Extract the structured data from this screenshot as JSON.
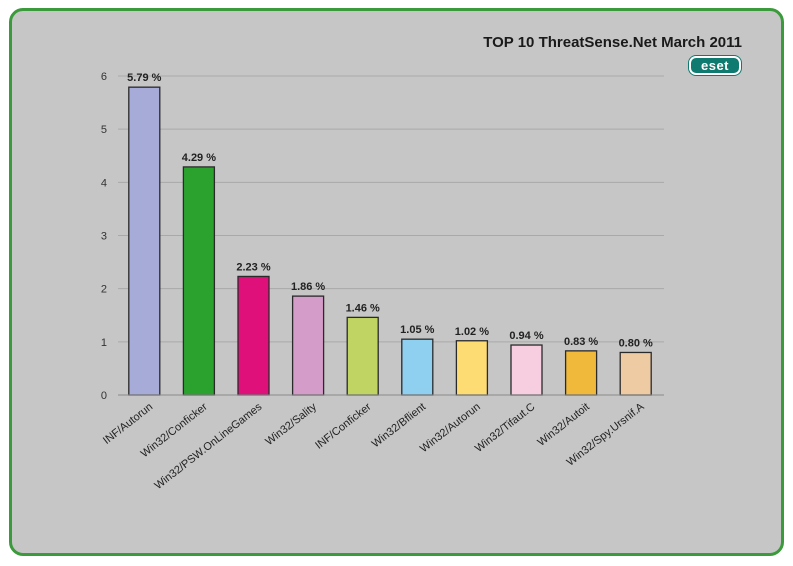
{
  "chart_data": {
    "type": "bar",
    "title": "TOP 10 ThreatSense.Net March 2011",
    "xlabel": "",
    "ylabel": "",
    "ylim": [
      0,
      6
    ],
    "yticks": [
      0,
      1,
      2,
      3,
      4,
      5,
      6
    ],
    "grid": true,
    "categories": [
      "INF/Autorun",
      "Win32/Conficker",
      "Win32/PSW.OnLineGames",
      "Win32/Sality",
      "INF/Conficker",
      "Win32/Bflient",
      "Win32/Autorun",
      "Win32/Tifaut.C",
      "Win32/Autoit",
      "Win32/Spy.Ursnif.A"
    ],
    "values": [
      5.79,
      4.29,
      2.23,
      1.86,
      1.46,
      1.05,
      1.02,
      0.94,
      0.83,
      0.8
    ],
    "data_labels": [
      "5.79 %",
      "4.29 %",
      "2.23 %",
      "1.86 %",
      "1.46 %",
      "1.05 %",
      "1.02 %",
      "0.94 %",
      "0.83 %",
      "0.80 %"
    ],
    "colors": [
      "#a6abd8",
      "#2ba12e",
      "#e0107a",
      "#d49cc8",
      "#c0d463",
      "#8fcfef",
      "#fedc74",
      "#f7cde0",
      "#f0b93c",
      "#eecba3"
    ]
  },
  "logo_text": "eset",
  "colors": {
    "frame_border": "#3b9a3b",
    "background": "#c6c6c6",
    "logo": "#0f7b70"
  }
}
